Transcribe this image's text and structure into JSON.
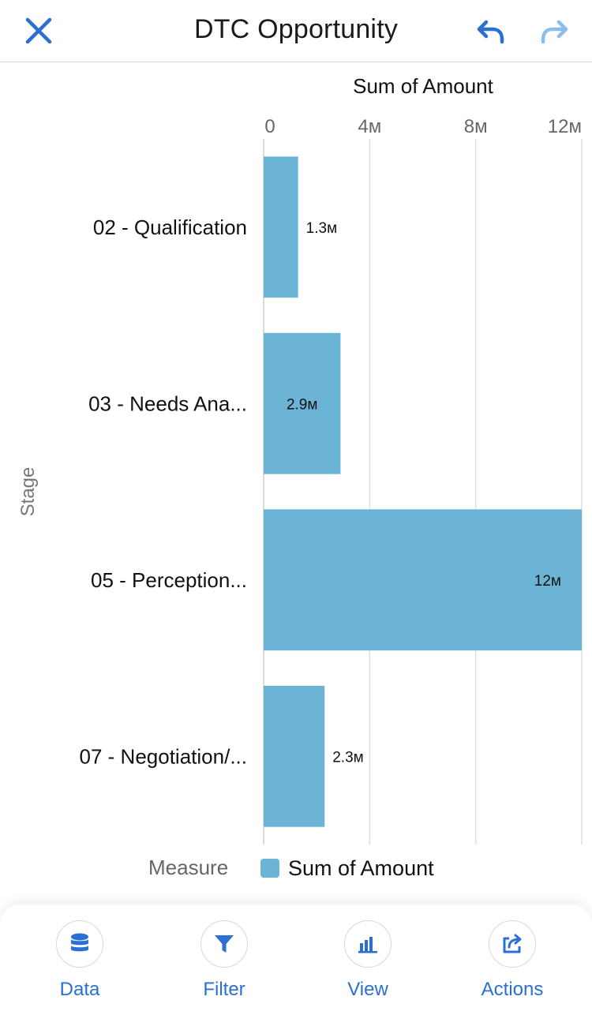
{
  "header": {
    "title": "DTC Opportunity"
  },
  "chart_data": {
    "type": "bar",
    "orientation": "horizontal",
    "title": "",
    "xlabel": "Sum of Amount",
    "ylabel": "Stage",
    "categories": [
      "02 - Qualification",
      "03 - Needs Ana...",
      "05 - Perception...",
      "07 - Negotiation/..."
    ],
    "values": [
      1300000,
      2900000,
      12000000,
      2300000
    ],
    "value_labels": [
      "1.3м",
      "2.9м",
      "12м",
      "2.3м"
    ],
    "xlim": [
      0,
      12000000
    ],
    "xticks": [
      0,
      4000000,
      8000000,
      12000000
    ],
    "xtick_labels": [
      "0",
      "4м",
      "8м",
      "12м"
    ],
    "grid": true,
    "color": "#6cb4d5",
    "legend": {
      "title": "Measure",
      "position": "bottom",
      "entries": [
        "Sum of Amount"
      ]
    }
  },
  "bottom_nav": [
    {
      "label": "Data",
      "icon": "database-icon"
    },
    {
      "label": "Filter",
      "icon": "filter-icon"
    },
    {
      "label": "View",
      "icon": "bar-chart-icon"
    },
    {
      "label": "Actions",
      "icon": "share-icon"
    }
  ],
  "colors": {
    "accent": "#2a6fd1",
    "bar": "#6cb4d5"
  }
}
